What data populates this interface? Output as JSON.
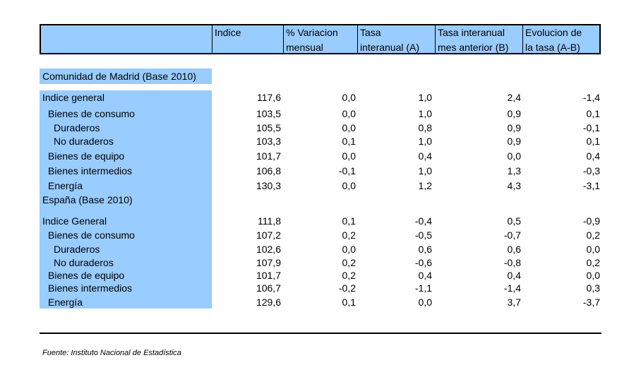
{
  "header": {
    "columns": [
      {
        "line1": "",
        "line2": ""
      },
      {
        "line1": "Indice",
        "line2": ""
      },
      {
        "line1": "% Variacion",
        "line2": "mensual"
      },
      {
        "line1": "Tasa",
        "line2": "interanual (A)"
      },
      {
        "line1": "Tasa interanual",
        "line2": "mes anterior (B)"
      },
      {
        "line1": "Evolucion de",
        "line2": "la tasa (A-B)"
      }
    ]
  },
  "sections": [
    {
      "title": "Comunidad de Madrid (Base 2010)",
      "rows": [
        {
          "label": "Indice general",
          "values": [
            "117,6",
            "0,0",
            "1,0",
            "2,4",
            "-1,4"
          ]
        },
        {
          "label": "Bienes de consumo",
          "values": [
            "103,5",
            "0,0",
            "1,0",
            "0,9",
            "0,1"
          ]
        },
        {
          "label": "Duraderos",
          "values": [
            "105,5",
            "0,0",
            "0,8",
            "0,9",
            "-0,1"
          ]
        },
        {
          "label": "No duraderos",
          "values": [
            "103,3",
            "0,1",
            "1,0",
            "0,9",
            "0,1"
          ]
        },
        {
          "label": "Bienes de equipo",
          "values": [
            "101,7",
            "0,0",
            "0,4",
            "0,0",
            "0,4"
          ]
        },
        {
          "label": "Bienes intermedios",
          "values": [
            "106,8",
            "-0,1",
            "1,0",
            "1,3",
            "-0,3"
          ]
        },
        {
          "label": "Energía",
          "values": [
            "130,3",
            "0,0",
            "1,2",
            "4,3",
            "-3,1"
          ]
        }
      ]
    },
    {
      "title": "España (Base 2010)",
      "rows": [
        {
          "label": "Indice General",
          "values": [
            "111,8",
            "0,1",
            "-0,4",
            "0,5",
            "-0,9"
          ]
        },
        {
          "label": "Bienes de consumo",
          "values": [
            "107,2",
            "0,2",
            "-0,5",
            "-0,7",
            "0,2"
          ]
        },
        {
          "label": "Duraderos",
          "values": [
            "102,6",
            "0,0",
            "0,6",
            "0,6",
            "0,0"
          ]
        },
        {
          "label": "No duraderos",
          "values": [
            "107,9",
            "0,2",
            "-0,6",
            "-0,8",
            "0,2"
          ]
        },
        {
          "label": "Bienes de equipo",
          "values": [
            "101,7",
            "0,2",
            "0,4",
            "0,4",
            "0,0"
          ]
        },
        {
          "label": "Bienes intermedios",
          "values": [
            "106,7",
            "-0,2",
            "-1,1",
            "-1,4",
            "0,3"
          ]
        },
        {
          "label": "Energía",
          "values": [
            "129,6",
            "0,1",
            "0,0",
            "3,7",
            "-3,7"
          ]
        }
      ]
    }
  ],
  "footer": {
    "source": "Fuente: Instituto Nacional de Estadística"
  },
  "colors": {
    "header_fill": "#99ccff",
    "label_fill": "#99ccff"
  }
}
